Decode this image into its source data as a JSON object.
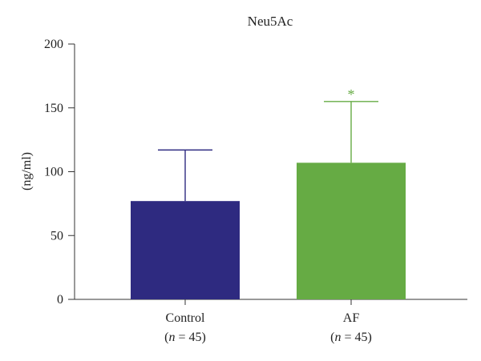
{
  "chart_data": {
    "type": "bar",
    "title": "Neu5Ac",
    "ylabel": "(ng/ml)",
    "xlabel": "",
    "ylim": [
      0,
      200
    ],
    "yticks": [
      0,
      50,
      100,
      150,
      200
    ],
    "categories": [
      "Control",
      "AF"
    ],
    "category_notes": [
      {
        "var": "n",
        "rest": " = 45",
        "open": "(",
        "close": ")"
      },
      {
        "var": "n",
        "rest": " = 45",
        "open": "(",
        "close": ")"
      }
    ],
    "values": [
      77,
      107
    ],
    "errors": [
      40,
      48
    ],
    "colors": [
      "#2e2a80",
      "#66ab44"
    ],
    "annotations": [
      "",
      "*"
    ],
    "grid": false,
    "legend": "none"
  }
}
